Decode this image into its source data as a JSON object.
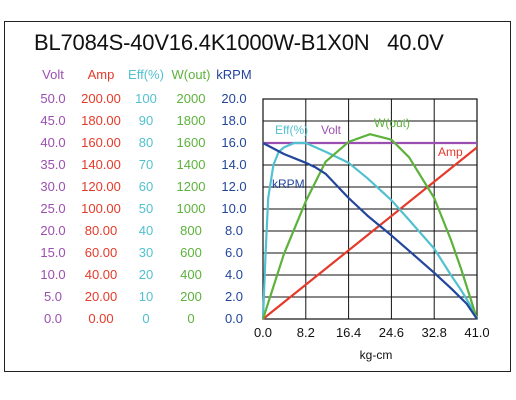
{
  "title": "BL7084S-40V16.4K1000W-B1X0N   40.0V",
  "colors": {
    "volt": "#9b4fb0",
    "amp": "#e53a2a",
    "eff": "#52c1cf",
    "wout": "#5db23c",
    "krpm": "#23469c",
    "axis": "#111111"
  },
  "columns": {
    "volt": {
      "label": "Volt",
      "ticks": [
        "50.0",
        "45.0",
        "40.0",
        "35.0",
        "30.0",
        "25.0",
        "20.0",
        "15.0",
        "10.0",
        "5.0",
        "0.0"
      ]
    },
    "amp": {
      "label": "Amp",
      "ticks": [
        "200.00",
        "180.00",
        "160.00",
        "140.00",
        "120.00",
        "100.00",
        "80.00",
        "60.00",
        "40.00",
        "20.00",
        "0.00"
      ]
    },
    "eff": {
      "label": "Eff(%)",
      "ticks": [
        "100",
        "90",
        "80",
        "70",
        "60",
        "50",
        "40",
        "30",
        "20",
        "10",
        "0"
      ]
    },
    "wout": {
      "label": "W(out)",
      "ticks": [
        "2000",
        "1800",
        "1600",
        "1400",
        "1200",
        "1000",
        "800",
        "600",
        "400",
        "200",
        "0"
      ]
    },
    "krpm": {
      "label": "kRPM",
      "ticks": [
        "20.0",
        "18.0",
        "16.0",
        "14.0",
        "12.0",
        "10.0",
        "8.0",
        "6.0",
        "4.0",
        "2.0",
        "0.0"
      ]
    }
  },
  "chart_data": {
    "type": "line",
    "xlabel": "kg-cm",
    "x_ticks": [
      "0.0",
      "8.2",
      "16.4",
      "24.6",
      "32.8",
      "41.0"
    ],
    "xlim": [
      0,
      41.0
    ],
    "grid": true,
    "series": [
      {
        "name": "Volt",
        "axis": "volt",
        "color": "#9b4fb0",
        "x": [
          0,
          41.0
        ],
        "y": [
          40.0,
          40.0
        ]
      },
      {
        "name": "Amp",
        "axis": "amp",
        "color": "#e53a2a",
        "x": [
          0,
          41.0
        ],
        "y": [
          0,
          156
        ]
      },
      {
        "name": "Eff(%)",
        "axis": "eff",
        "color": "#52c1cf",
        "x": [
          0,
          0.5,
          1,
          2,
          3,
          4,
          6,
          8.2,
          12,
          16.4,
          20,
          24.6,
          28,
          32.8,
          36,
          38,
          40,
          41.0
        ],
        "y": [
          0,
          30,
          55,
          70,
          76,
          78,
          80,
          80,
          76,
          71,
          64,
          54,
          45,
          32,
          20,
          13,
          5,
          0
        ]
      },
      {
        "name": "W(out)",
        "axis": "wout",
        "color": "#5db23c",
        "x": [
          0,
          4,
          8.2,
          12,
          16.4,
          20.5,
          24.6,
          28,
          32.8,
          36,
          38,
          40,
          41.0
        ],
        "y": [
          0,
          590,
          1070,
          1430,
          1610,
          1680,
          1630,
          1470,
          1100,
          720,
          450,
          150,
          0
        ]
      },
      {
        "name": "kRPM",
        "axis": "krpm",
        "color": "#23469c",
        "x": [
          0,
          4,
          8.2,
          10,
          12,
          16.4,
          20,
          24.6,
          28,
          32.8,
          36,
          39,
          41.0
        ],
        "y": [
          16.0,
          15.0,
          14.2,
          13.8,
          13.2,
          11.0,
          9.4,
          7.6,
          6.2,
          4.2,
          2.8,
          1.4,
          0
        ]
      }
    ],
    "series_labels": [
      {
        "name": "Eff(%)",
        "color": "#52c1cf"
      },
      {
        "name": "Volt",
        "color": "#9b4fb0"
      },
      {
        "name": "W(out)",
        "color": "#5db23c"
      },
      {
        "name": "Amp",
        "color": "#e53a2a"
      },
      {
        "name": "kRPM",
        "color": "#23469c"
      }
    ],
    "axis_ranges": {
      "volt": [
        0,
        50
      ],
      "amp": [
        0,
        200
      ],
      "eff": [
        0,
        100
      ],
      "wout": [
        0,
        2000
      ],
      "krpm": [
        0,
        20
      ]
    }
  }
}
